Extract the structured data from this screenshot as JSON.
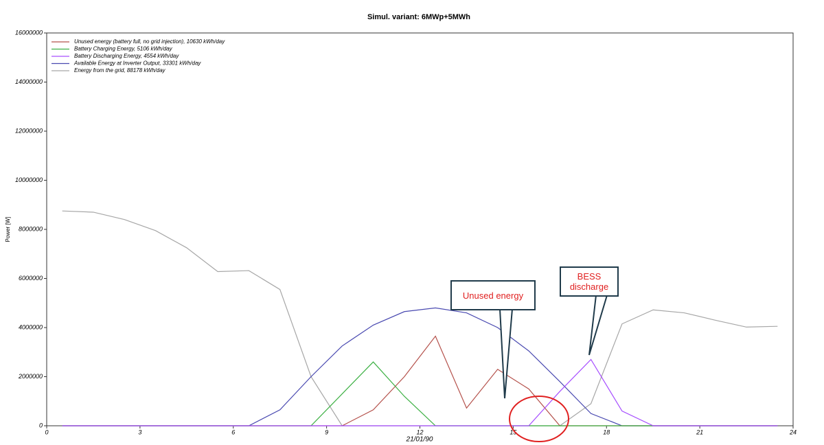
{
  "chart_data": {
    "type": "line",
    "title": "Simul. variant: 6MWp+5MWh",
    "y_label": "Power  [W]",
    "x_label": "21/01/90",
    "x": [
      0.5,
      1.5,
      2.5,
      3.5,
      4.5,
      5.5,
      6.5,
      7.5,
      8.5,
      9.5,
      10.5,
      11.5,
      12.5,
      13.5,
      14.5,
      15.5,
      16.5,
      17.5,
      18.5,
      19.5,
      20.5,
      21.5,
      22.5,
      23.5
    ],
    "xlim": [
      0,
      24
    ],
    "xticks": [
      0,
      3,
      6,
      9,
      12,
      15,
      18,
      21,
      24
    ],
    "ylim": [
      0,
      16000000
    ],
    "yticks": [
      0,
      2000000,
      4000000,
      6000000,
      8000000,
      10000000,
      12000000,
      14000000,
      16000000
    ],
    "legend": "upper left",
    "series": [
      {
        "name": "Energy from the grid,  88178 kWh/day",
        "color": "#a6a6a6",
        "values": [
          8750000,
          8700000,
          8400000,
          7950000,
          7250000,
          6280000,
          6320000,
          5550000,
          2000000,
          0,
          0,
          0,
          0,
          0,
          0,
          0,
          0,
          900000,
          4150000,
          4720000,
          4600000,
          4300000,
          4020000,
          4050000
        ]
      },
      {
        "name": "Available Energy at Inverter Output,  33301 kWh/day",
        "color": "#4848b0",
        "values": [
          0,
          0,
          0,
          0,
          0,
          0,
          0,
          650000,
          2000000,
          3250000,
          4100000,
          4650000,
          4800000,
          4600000,
          4000000,
          3050000,
          1800000,
          500000,
          0,
          0,
          0,
          0,
          0,
          0
        ]
      },
      {
        "name": "Unused energy (battery full, no grid injection),  10630 kWh/day",
        "color": "#b4504a",
        "values": [
          0,
          0,
          0,
          0,
          0,
          0,
          0,
          0,
          0,
          0,
          650000,
          2000000,
          3650000,
          720000,
          2300000,
          1500000,
          0,
          0,
          0,
          0,
          0,
          0,
          0,
          0
        ]
      },
      {
        "name": "Battery Charging Energy,  5106 kWh/day",
        "color": "#3cb043",
        "values": [
          0,
          0,
          0,
          0,
          0,
          0,
          0,
          0,
          0,
          1300000,
          2600000,
          1200000,
          0,
          0,
          0,
          0,
          0,
          0,
          0,
          0,
          0,
          0,
          0,
          0
        ]
      },
      {
        "name": "Battery Discharging Energy,  4554 kWh/day",
        "color": "#a64dff",
        "values": [
          0,
          0,
          0,
          0,
          0,
          0,
          0,
          0,
          0,
          0,
          0,
          0,
          0,
          0,
          0,
          0,
          1400000,
          2700000,
          600000,
          0,
          0,
          0,
          0,
          0
        ]
      }
    ],
    "annotations": [
      "Unused energy",
      "BESS discharge"
    ]
  }
}
